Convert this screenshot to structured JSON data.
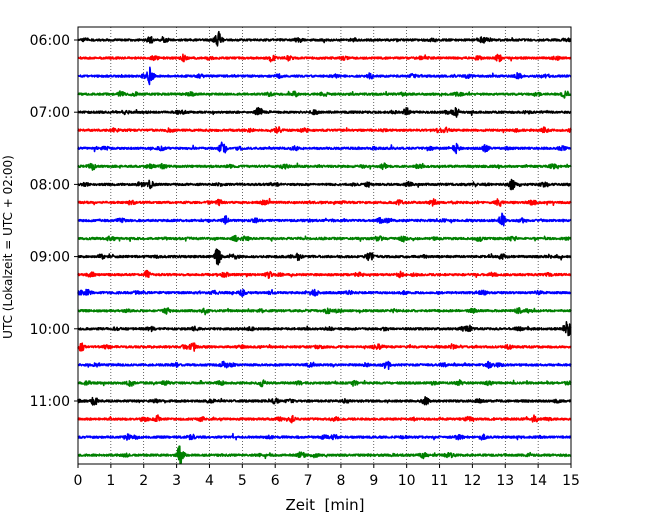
{
  "chart_data": {
    "type": "line",
    "title": "",
    "xlabel": "Zeit  [min]",
    "ylabel": "UTC (Lokalzeit = UTC + 02:00)",
    "xlim": [
      0,
      15
    ],
    "x_ticks": [
      "0",
      "1",
      "2",
      "3",
      "4",
      "5",
      "6",
      "7",
      "8",
      "9",
      "10",
      "11",
      "12",
      "13",
      "14",
      "15"
    ],
    "y_ticks": [
      "06:00",
      "07:00",
      "08:00",
      "09:00",
      "10:00",
      "11:00"
    ],
    "vertical_grid": "dotted",
    "trace_interval_min": 15,
    "trace_colors": [
      "#000000",
      "#ff0000",
      "#0000ff",
      "#008000"
    ],
    "traces": [
      {
        "start": "06:00",
        "color": "#000000",
        "events": [
          [
            2.2,
            0.4
          ],
          [
            4.25,
            1.0
          ],
          [
            12.3,
            0.3
          ]
        ]
      },
      {
        "start": "06:15",
        "color": "#ff0000",
        "events": [
          [
            3.2,
            0.35
          ],
          [
            5.9,
            0.4
          ],
          [
            12.8,
            0.4
          ]
        ]
      },
      {
        "start": "06:30",
        "color": "#0000ff",
        "events": [
          [
            2.2,
            1.0
          ],
          [
            8.9,
            0.35
          ],
          [
            13.4,
            0.35
          ]
        ]
      },
      {
        "start": "06:45",
        "color": "#008000",
        "events": [
          [
            1.3,
            0.3
          ],
          [
            6.6,
            0.3
          ],
          [
            14.8,
            0.35
          ]
        ]
      },
      {
        "start": "07:00",
        "color": "#000000",
        "events": [
          [
            5.5,
            0.45
          ],
          [
            10.0,
            0.6
          ],
          [
            11.5,
            0.5
          ]
        ]
      },
      {
        "start": "07:15",
        "color": "#ff0000",
        "events": [
          [
            6.1,
            0.45
          ],
          [
            11.2,
            0.3
          ],
          [
            14.2,
            0.3
          ]
        ]
      },
      {
        "start": "07:30",
        "color": "#0000ff",
        "events": [
          [
            4.4,
            1.0
          ],
          [
            11.5,
            0.6
          ],
          [
            12.4,
            0.4
          ]
        ]
      },
      {
        "start": "07:45",
        "color": "#008000",
        "events": [
          [
            0.4,
            0.4
          ],
          [
            2.6,
            0.3
          ],
          [
            9.3,
            0.3
          ]
        ]
      },
      {
        "start": "08:00",
        "color": "#000000",
        "events": [
          [
            2.2,
            0.45
          ],
          [
            8.8,
            0.35
          ],
          [
            13.2,
            0.65
          ]
        ]
      },
      {
        "start": "08:15",
        "color": "#ff0000",
        "events": [
          [
            4.3,
            0.3
          ],
          [
            10.8,
            0.4
          ],
          [
            12.8,
            0.55
          ]
        ]
      },
      {
        "start": "08:30",
        "color": "#0000ff",
        "events": [
          [
            4.5,
            0.45
          ],
          [
            9.2,
            0.3
          ],
          [
            12.9,
            0.8
          ]
        ]
      },
      {
        "start": "08:45",
        "color": "#008000",
        "events": [
          [
            4.8,
            0.35
          ],
          [
            9.9,
            0.4
          ],
          [
            12.2,
            0.3
          ]
        ]
      },
      {
        "start": "09:00",
        "color": "#000000",
        "events": [
          [
            4.25,
            1.0
          ],
          [
            6.7,
            0.35
          ],
          [
            8.9,
            0.35
          ]
        ]
      },
      {
        "start": "09:15",
        "color": "#ff0000",
        "events": [
          [
            2.1,
            0.35
          ],
          [
            5.8,
            0.35
          ],
          [
            9.8,
            0.3
          ]
        ]
      },
      {
        "start": "09:30",
        "color": "#0000ff",
        "events": [
          [
            0.3,
            0.35
          ],
          [
            5.0,
            0.35
          ],
          [
            7.2,
            0.4
          ]
        ]
      },
      {
        "start": "09:45",
        "color": "#008000",
        "events": [
          [
            2.7,
            0.3
          ],
          [
            7.6,
            0.3
          ],
          [
            13.4,
            0.3
          ]
        ]
      },
      {
        "start": "10:00",
        "color": "#000000",
        "events": [
          [
            2.2,
            0.35
          ],
          [
            11.9,
            0.35
          ],
          [
            14.9,
            1.0
          ]
        ]
      },
      {
        "start": "10:15",
        "color": "#ff0000",
        "events": [
          [
            0.1,
            0.45
          ],
          [
            3.5,
            0.55
          ],
          [
            9.2,
            0.3
          ]
        ]
      },
      {
        "start": "10:30",
        "color": "#0000ff",
        "events": [
          [
            4.4,
            0.35
          ],
          [
            9.4,
            0.6
          ],
          [
            12.5,
            0.35
          ]
        ]
      },
      {
        "start": "10:45",
        "color": "#008000",
        "events": [
          [
            1.6,
            0.4
          ],
          [
            5.6,
            0.35
          ],
          [
            11.6,
            0.3
          ]
        ]
      },
      {
        "start": "11:00",
        "color": "#000000",
        "events": [
          [
            0.5,
            0.5
          ],
          [
            6.0,
            0.35
          ],
          [
            10.6,
            0.35
          ]
        ]
      },
      {
        "start": "11:15",
        "color": "#ff0000",
        "events": [
          [
            2.4,
            0.35
          ],
          [
            6.5,
            0.35
          ],
          [
            13.9,
            0.45
          ]
        ]
      },
      {
        "start": "11:30",
        "color": "#0000ff",
        "events": [
          [
            1.5,
            0.35
          ],
          [
            7.8,
            0.3
          ],
          [
            12.3,
            0.3
          ]
        ]
      },
      {
        "start": "11:45",
        "color": "#008000",
        "events": [
          [
            3.1,
            1.0
          ],
          [
            6.8,
            0.4
          ],
          [
            10.5,
            0.3
          ]
        ]
      }
    ]
  }
}
